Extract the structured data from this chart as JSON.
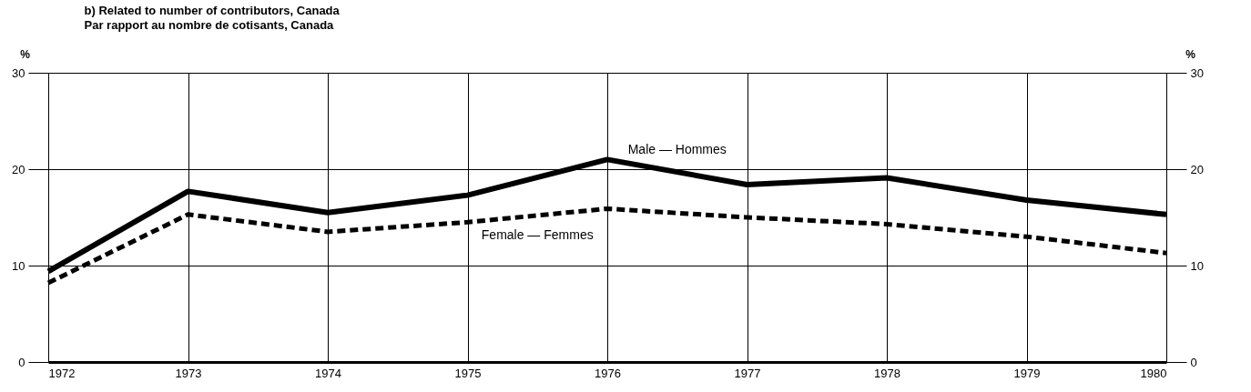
{
  "chart_data": {
    "type": "line",
    "title": "b) Related to number of contributors, Canada",
    "subtitle": "Par rapport au nombre de cotisants, Canada",
    "ylabel": "%",
    "y2label": "%",
    "x": [
      1972,
      1973,
      1974,
      1975,
      1976,
      1977,
      1978,
      1979,
      1980
    ],
    "xlim": [
      1972,
      1980
    ],
    "xticks": [
      1972,
      1973,
      1974,
      1975,
      1976,
      1977,
      1978,
      1979,
      1980
    ],
    "ylim": [
      0,
      30
    ],
    "yticks": [
      0,
      10,
      20,
      30
    ],
    "y2lim": [
      0,
      30
    ],
    "y2ticks": [
      0,
      10,
      20,
      30
    ],
    "grid": true,
    "series": [
      {
        "name": "Male — Hommes",
        "color": "#000000",
        "line_style": "solid",
        "values": [
          9.4,
          17.7,
          15.5,
          17.3,
          21.0,
          18.4,
          19.1,
          16.8,
          15.3
        ]
      },
      {
        "name": "Female — Femmes",
        "color": "#000000",
        "line_style": "dashed",
        "axis": "y2",
        "values": [
          8.2,
          15.3,
          13.5,
          14.5,
          15.9,
          15.0,
          14.3,
          13.0,
          11.3
        ]
      }
    ]
  }
}
